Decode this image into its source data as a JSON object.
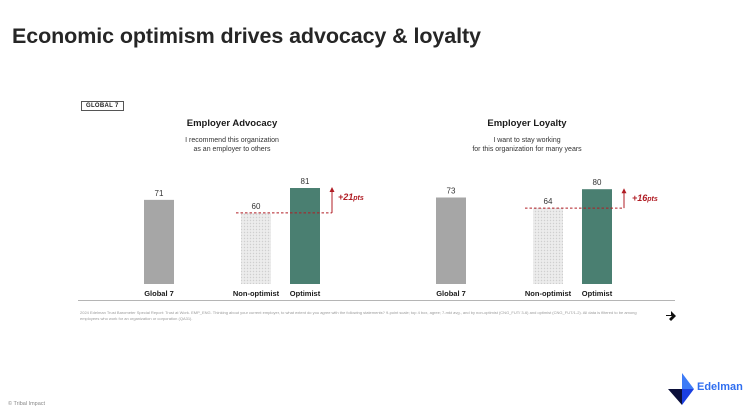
{
  "page": {
    "title": "Economic optimism drives advocacy & loyalty",
    "badge": "GLOBAL 7",
    "footnote": "2024 Edelman Trust Barometer Special Report: Trust at Work. EMP_ENG. Thinking about your current employer, to what extent do you agree with the following statements? 9-point scale; top 4 box, agree; 7-mkt avg., and by non-optimist (CNG_FUT/ 3-6) and optimist (CNG_FUT/1-2). All data is filtered to be among employees who work for an organization or corporation (QA31).",
    "copyright": "© Tribal Impact",
    "brand": "Edelman",
    "colors": {
      "global": "#a6a6a6",
      "nonoptimist": "#e0e0e0",
      "optimist": "#4a7f71",
      "accent": "#b01c24",
      "brand": "#2f6ef0"
    }
  },
  "chart_data": [
    {
      "type": "bar",
      "title": "Employer Advocacy",
      "subtitle_lines": [
        "I recommend this organization",
        "as an employer to others"
      ],
      "categories": [
        "Global 7",
        "Non-optimist",
        "Optimist"
      ],
      "values": [
        71,
        60,
        81
      ],
      "value_labels": [
        "71",
        "60",
        "81"
      ],
      "delta_label_main": "+21",
      "delta_label_unit": "pts",
      "ylim": [
        0,
        100
      ],
      "grid": false
    },
    {
      "type": "bar",
      "title": "Employer Loyalty",
      "subtitle_lines": [
        "I want to stay working",
        "for this organization for many years"
      ],
      "categories": [
        "Global 7",
        "Non-optimist",
        "Optimist"
      ],
      "values": [
        73,
        64,
        80
      ],
      "value_labels": [
        "73",
        "64",
        "80"
      ],
      "delta_label_main": "+16",
      "delta_label_unit": "pts",
      "ylim": [
        0,
        100
      ],
      "grid": false
    }
  ]
}
